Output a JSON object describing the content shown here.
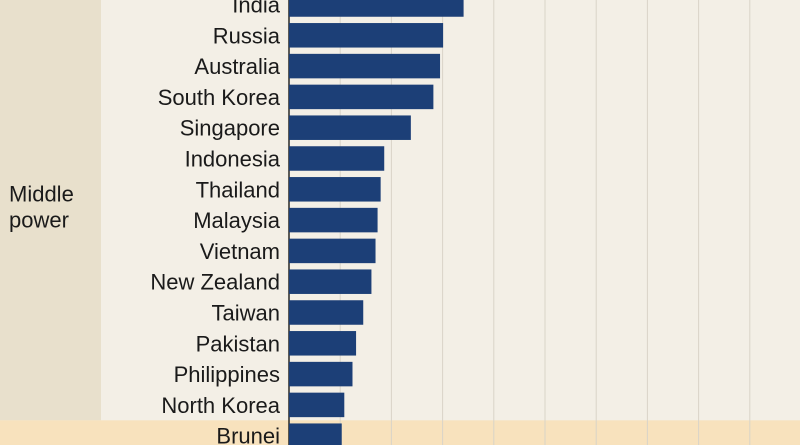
{
  "chart_data": {
    "type": "bar",
    "orientation": "horizontal",
    "title": "",
    "xlabel": "",
    "ylabel": "",
    "xlim": [
      0,
      100
    ],
    "grid": true,
    "categories": [
      "India",
      "Russia",
      "Australia",
      "South Korea",
      "Singapore",
      "Indonesia",
      "Thailand",
      "Malaysia",
      "Vietnam",
      "New Zealand",
      "Taiwan",
      "Pakistan",
      "Philippines",
      "North Korea",
      "Brunei"
    ],
    "values": [
      34.1,
      30.1,
      29.5,
      28.2,
      23.8,
      18.6,
      17.9,
      17.3,
      16.9,
      16.1,
      14.5,
      13.1,
      12.4,
      10.8,
      10.3
    ],
    "groups": [
      {
        "label_lines": [
          "Middle",
          "power"
        ],
        "categories": [
          "India",
          "Russia",
          "Australia",
          "South Korea",
          "Singapore",
          "Indonesia",
          "Thailand",
          "Malaysia",
          "Vietnam",
          "New Zealand",
          "Taiwan",
          "Pakistan",
          "Philippines",
          "North Korea"
        ],
        "band_color": "#e8e0cc"
      },
      {
        "label_lines": [],
        "categories": [
          "Brunei"
        ],
        "band_color": "#f8e2bd"
      }
    ],
    "bar_color": "#1c3f77"
  }
}
